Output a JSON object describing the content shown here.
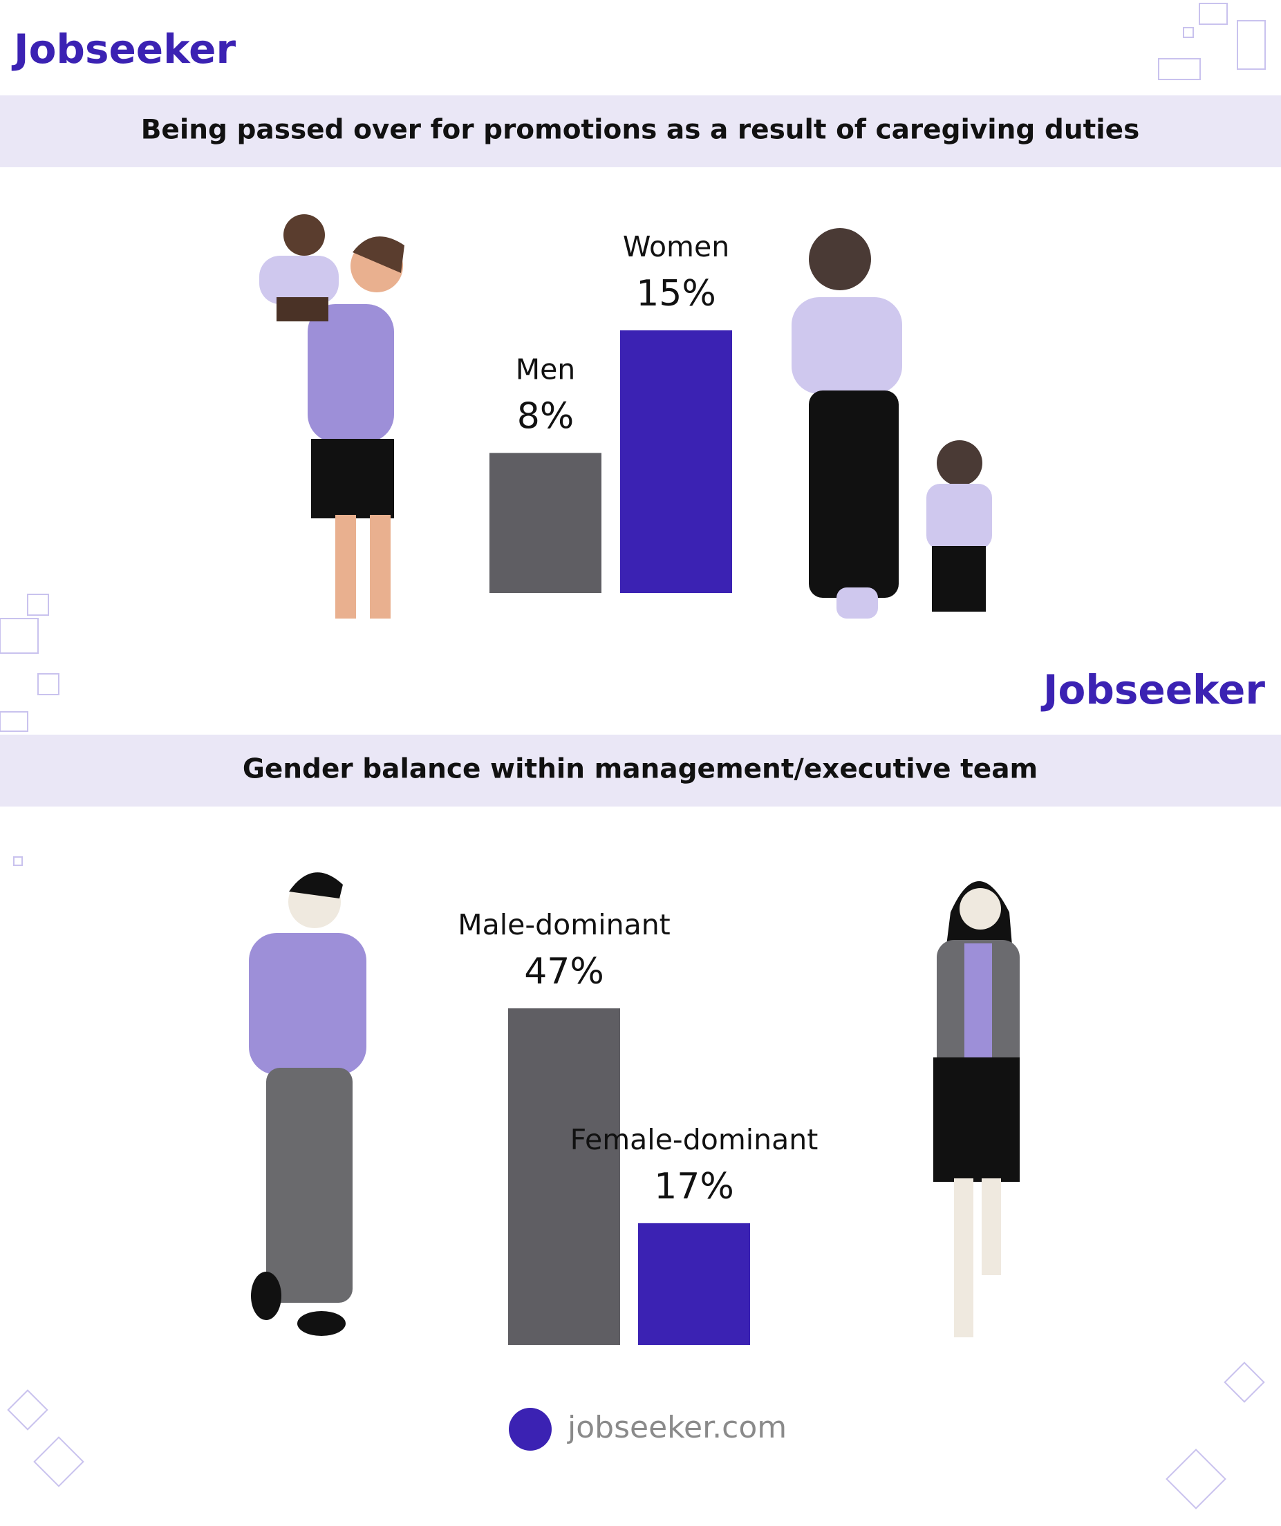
{
  "logos": [
    "Jobseeker",
    "Jobseeker"
  ],
  "footer": "jobseeker.com",
  "chart_data": [
    {
      "type": "bar",
      "title": "Being passed over for promotions as a result of caregiving duties",
      "categories": [
        "Men",
        "Women"
      ],
      "values": [
        8,
        15
      ],
      "value_labels": [
        "8%",
        "15%"
      ],
      "colors": [
        "#5f5e63",
        "#3b22b3"
      ]
    },
    {
      "type": "bar",
      "title": "Gender balance within management/executive team",
      "categories": [
        "Male-dominant",
        "Female-dominant"
      ],
      "values": [
        47,
        17
      ],
      "value_labels": [
        "47%",
        "17%"
      ],
      "colors": [
        "#5f5e63",
        "#3b22b3"
      ]
    }
  ]
}
